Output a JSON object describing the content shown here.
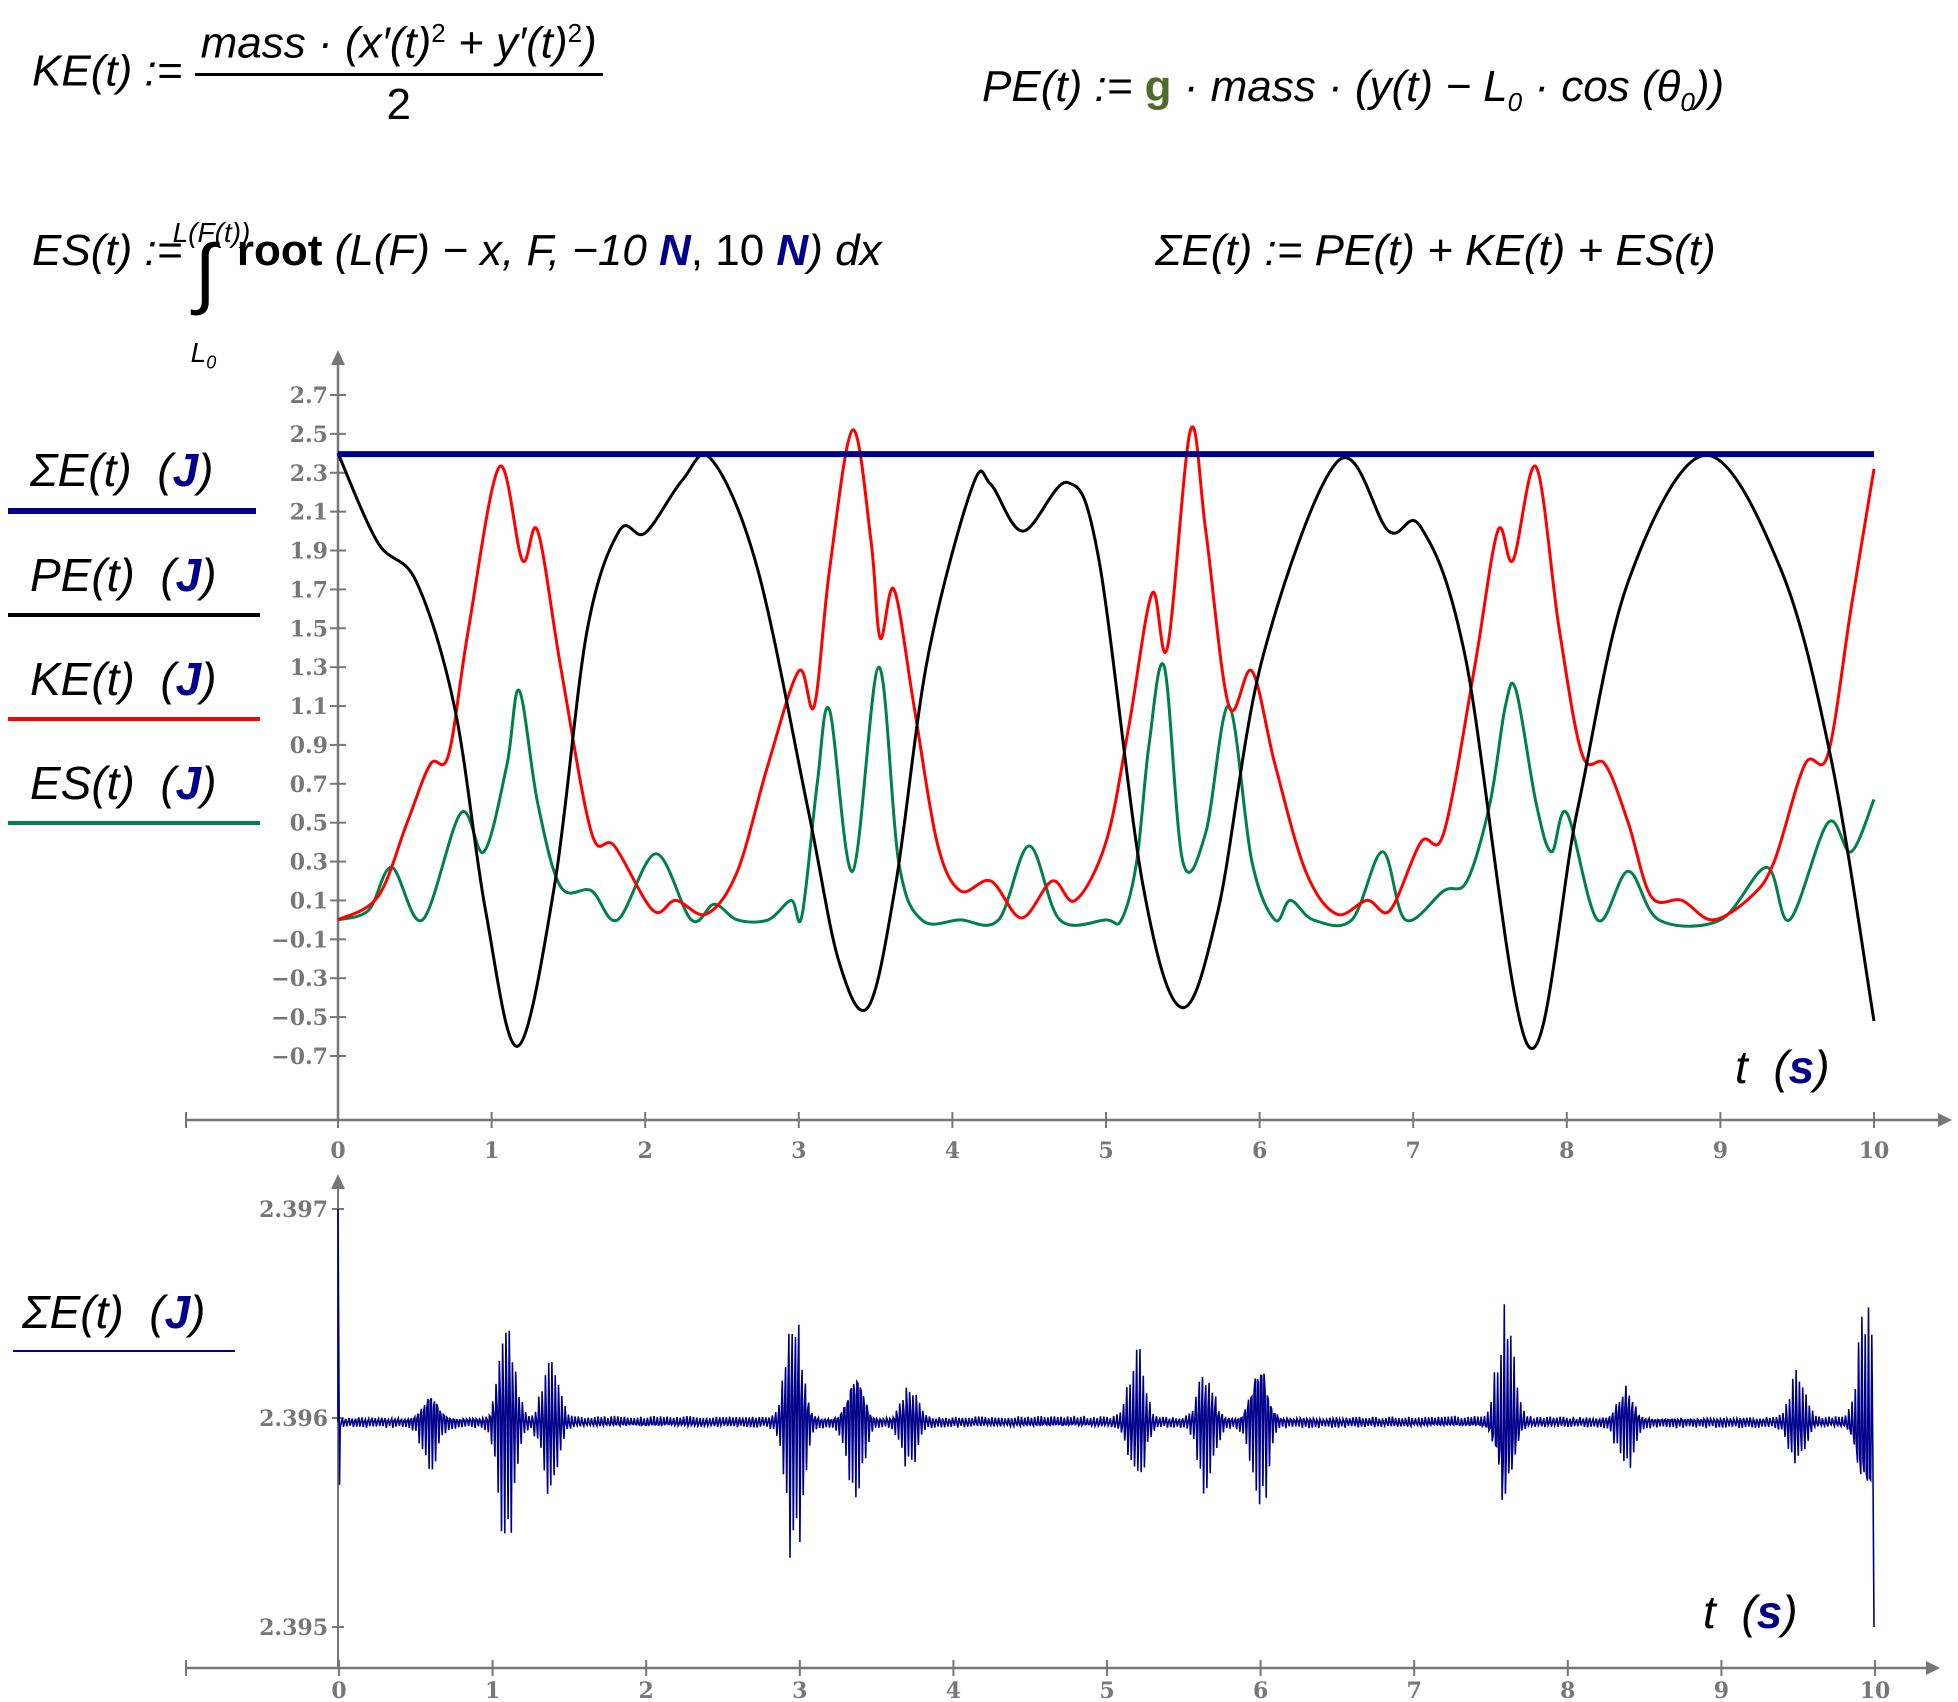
{
  "formulas": {
    "ke": {
      "lhs": "KE(t) :=",
      "numerator": "mass · (x′(t)",
      "sq1": "2",
      "plus": " + y′(t)",
      "sq2": "2",
      "close": ")",
      "denominator": "2"
    },
    "pe": {
      "lhs": "PE(t) :=",
      "g": "g",
      "rest": " · mass · (y(t) − L",
      "sub0": "0",
      "cos": " · cos (θ",
      "sub1": "0",
      "close": "))"
    },
    "es": {
      "lhs": "ES(t) :=",
      "integral": "∫",
      "upper": "L(F(t))",
      "lower": "L",
      "lower_sub": "0",
      "root": "root",
      "args1": " (L(F) − x, F, −10 ",
      "unit1": "N",
      "args2": ", 10 ",
      "unit2": "N",
      "args3": ") dx"
    },
    "sum": {
      "text": "ΣE(t) := PE(t) + KE(t) + ES(t)"
    }
  },
  "colors": {
    "sum": "#00008b",
    "pe": "#000000",
    "ke": "#ff0000",
    "es": "#00804a",
    "axis": "#777777",
    "unit": "#00008b"
  },
  "chart_data": [
    {
      "type": "line",
      "xlabel": "t",
      "xunit": "s",
      "xlim": [
        0,
        10
      ],
      "ylim": [
        -0.7,
        2.7
      ],
      "xticks": [
        "0",
        "1",
        "2",
        "3",
        "4",
        "5",
        "6",
        "7",
        "8",
        "9",
        "10"
      ],
      "yticks": [
        "2.7",
        "2.5",
        "2.3",
        "2.1",
        "1.9",
        "1.7",
        "1.5",
        "1.3",
        "1.1",
        "0.9",
        "0.7",
        "0.5",
        "0.3",
        "0.1",
        "−0.1",
        "−0.3",
        "−0.5",
        "−0.7"
      ],
      "grid": false,
      "legend_placement": "left",
      "series": [
        {
          "name": "ΣE(t)",
          "unit": "J",
          "key": "sum",
          "t": [
            0,
            10
          ],
          "v": [
            2.396,
            2.396
          ]
        },
        {
          "name": "PE(t)",
          "unit": "J",
          "key": "pe",
          "t": [
            0,
            0.26,
            0.51,
            0.76,
            0.96,
            1.17,
            1.41,
            1.62,
            1.83,
            2.0,
            2.24,
            2.43,
            2.73,
            3.06,
            3.26,
            3.45,
            3.63,
            3.84,
            4.13,
            4.25,
            4.46,
            4.75,
            4.95,
            5.24,
            5.49,
            5.73,
            6.02,
            6.51,
            6.84,
            7.05,
            7.34,
            7.75,
            8.07,
            8.4,
            8.9,
            9.39,
            9.72,
            10
          ],
          "v": [
            2.4,
            1.94,
            1.74,
            1.09,
            0.05,
            -0.65,
            0.18,
            1.48,
            2.0,
            1.99,
            2.26,
            2.37,
            1.81,
            0.57,
            -0.21,
            -0.45,
            0.18,
            1.35,
            2.23,
            2.24,
            2.0,
            2.25,
            1.87,
            0.18,
            -0.45,
            0.05,
            1.35,
            2.36,
            2.0,
            2.02,
            1.35,
            -0.65,
            0.57,
            1.74,
            2.39,
            1.81,
            0.83,
            -0.52
          ]
        },
        {
          "name": "KE(t)",
          "unit": "J",
          "key": "ke",
          "t": [
            0,
            0.26,
            0.45,
            0.6,
            0.72,
            0.85,
            1.05,
            1.2,
            1.3,
            1.45,
            1.65,
            1.8,
            2.05,
            2.2,
            2.4,
            2.6,
            2.8,
            3.0,
            3.1,
            3.2,
            3.35,
            3.47,
            3.53,
            3.62,
            3.75,
            3.9,
            4.05,
            4.25,
            4.45,
            4.65,
            4.8,
            5.0,
            5.15,
            5.3,
            5.4,
            5.55,
            5.65,
            5.8,
            5.95,
            6.1,
            6.3,
            6.5,
            6.7,
            6.85,
            7.05,
            7.2,
            7.4,
            7.55,
            7.65,
            7.8,
            7.95,
            8.1,
            8.25,
            8.4,
            8.55,
            8.75,
            8.95,
            9.2,
            9.35,
            9.55,
            9.7,
            9.85,
            10
          ],
          "v": [
            0.0,
            0.12,
            0.5,
            0.8,
            0.85,
            1.5,
            2.33,
            1.85,
            2.0,
            1.3,
            0.45,
            0.38,
            0.05,
            0.1,
            0.03,
            0.25,
            0.8,
            1.28,
            1.1,
            1.8,
            2.52,
            1.95,
            1.45,
            1.7,
            1.1,
            0.4,
            0.15,
            0.2,
            0.01,
            0.2,
            0.1,
            0.4,
            1.0,
            1.68,
            1.4,
            2.52,
            2.0,
            1.1,
            1.28,
            0.8,
            0.25,
            0.03,
            0.1,
            0.05,
            0.4,
            0.45,
            1.3,
            2.0,
            1.85,
            2.33,
            1.5,
            0.85,
            0.8,
            0.5,
            0.12,
            0.1,
            0.0,
            0.12,
            0.3,
            0.8,
            0.85,
            1.6,
            2.32
          ]
        },
        {
          "name": "ES(t)",
          "unit": "J",
          "key": "es",
          "t": [
            0,
            0.2,
            0.35,
            0.55,
            0.8,
            0.95,
            1.1,
            1.18,
            1.3,
            1.45,
            1.65,
            1.82,
            2.07,
            2.3,
            2.45,
            2.6,
            2.8,
            2.95,
            3.02,
            3.12,
            3.2,
            3.35,
            3.52,
            3.65,
            3.8,
            4.05,
            4.3,
            4.5,
            4.7,
            5.0,
            5.1,
            5.2,
            5.28,
            5.38,
            5.5,
            5.65,
            5.8,
            5.95,
            6.1,
            6.2,
            6.35,
            6.6,
            6.8,
            6.95,
            7.2,
            7.35,
            7.5,
            7.6,
            7.67,
            7.8,
            7.9,
            8.0,
            8.2,
            8.4,
            8.6,
            9.0,
            9.3,
            9.45,
            9.7,
            9.85,
            10
          ],
          "v": [
            0,
            0.05,
            0.27,
            0.0,
            0.55,
            0.35,
            0.8,
            1.18,
            0.6,
            0.17,
            0.15,
            0.0,
            0.34,
            0.0,
            0.08,
            0.0,
            0.0,
            0.1,
            0.02,
            0.7,
            1.08,
            0.25,
            1.3,
            0.3,
            0.0,
            0.0,
            0.0,
            0.38,
            0.0,
            0.0,
            0.0,
            0.3,
            0.9,
            1.3,
            0.3,
            0.45,
            1.1,
            0.3,
            0.0,
            0.1,
            0.0,
            0.0,
            0.35,
            0.0,
            0.15,
            0.2,
            0.6,
            1.1,
            1.18,
            0.6,
            0.35,
            0.55,
            0.0,
            0.25,
            0.0,
            0.0,
            0.27,
            0.0,
            0.5,
            0.35,
            0.62
          ]
        }
      ]
    },
    {
      "type": "line",
      "xlabel": "t",
      "xunit": "s",
      "xlim": [
        0,
        10
      ],
      "ylim": [
        2.395,
        2.397
      ],
      "xticks": [
        "0",
        "1",
        "2",
        "3",
        "4",
        "5",
        "6",
        "7",
        "8",
        "9",
        "10"
      ],
      "yticks": [
        "2.397",
        "2.396",
        "2.395"
      ],
      "grid": false,
      "legend_placement": "left",
      "series": [
        {
          "name": "ΣE(t)",
          "unit": "J",
          "key": "sum",
          "baseline": 2.39598,
          "noise_amplitude": 3e-05,
          "bursts": [
            {
              "t": 0.6,
              "amplitude": 0.00022
            },
            {
              "t": 1.1,
              "amplitude": 0.0007
            },
            {
              "t": 1.38,
              "amplitude": 0.0004
            },
            {
              "t": 2.97,
              "amplitude": 0.0008
            },
            {
              "t": 3.37,
              "amplitude": 0.0004
            },
            {
              "t": 3.72,
              "amplitude": 0.00025
            },
            {
              "t": 5.2,
              "amplitude": 0.0004
            },
            {
              "t": 5.65,
              "amplitude": 0.00035
            },
            {
              "t": 6.0,
              "amplitude": 0.0005
            },
            {
              "t": 7.6,
              "amplitude": 0.0006
            },
            {
              "t": 8.38,
              "amplitude": 0.00025
            },
            {
              "t": 9.5,
              "amplitude": 0.00025
            },
            {
              "t": 9.95,
              "amplitude": 0.0006
            }
          ],
          "endpoints": {
            "t0_value": 2.397,
            "t10_value": 2.395
          }
        }
      ]
    }
  ]
}
